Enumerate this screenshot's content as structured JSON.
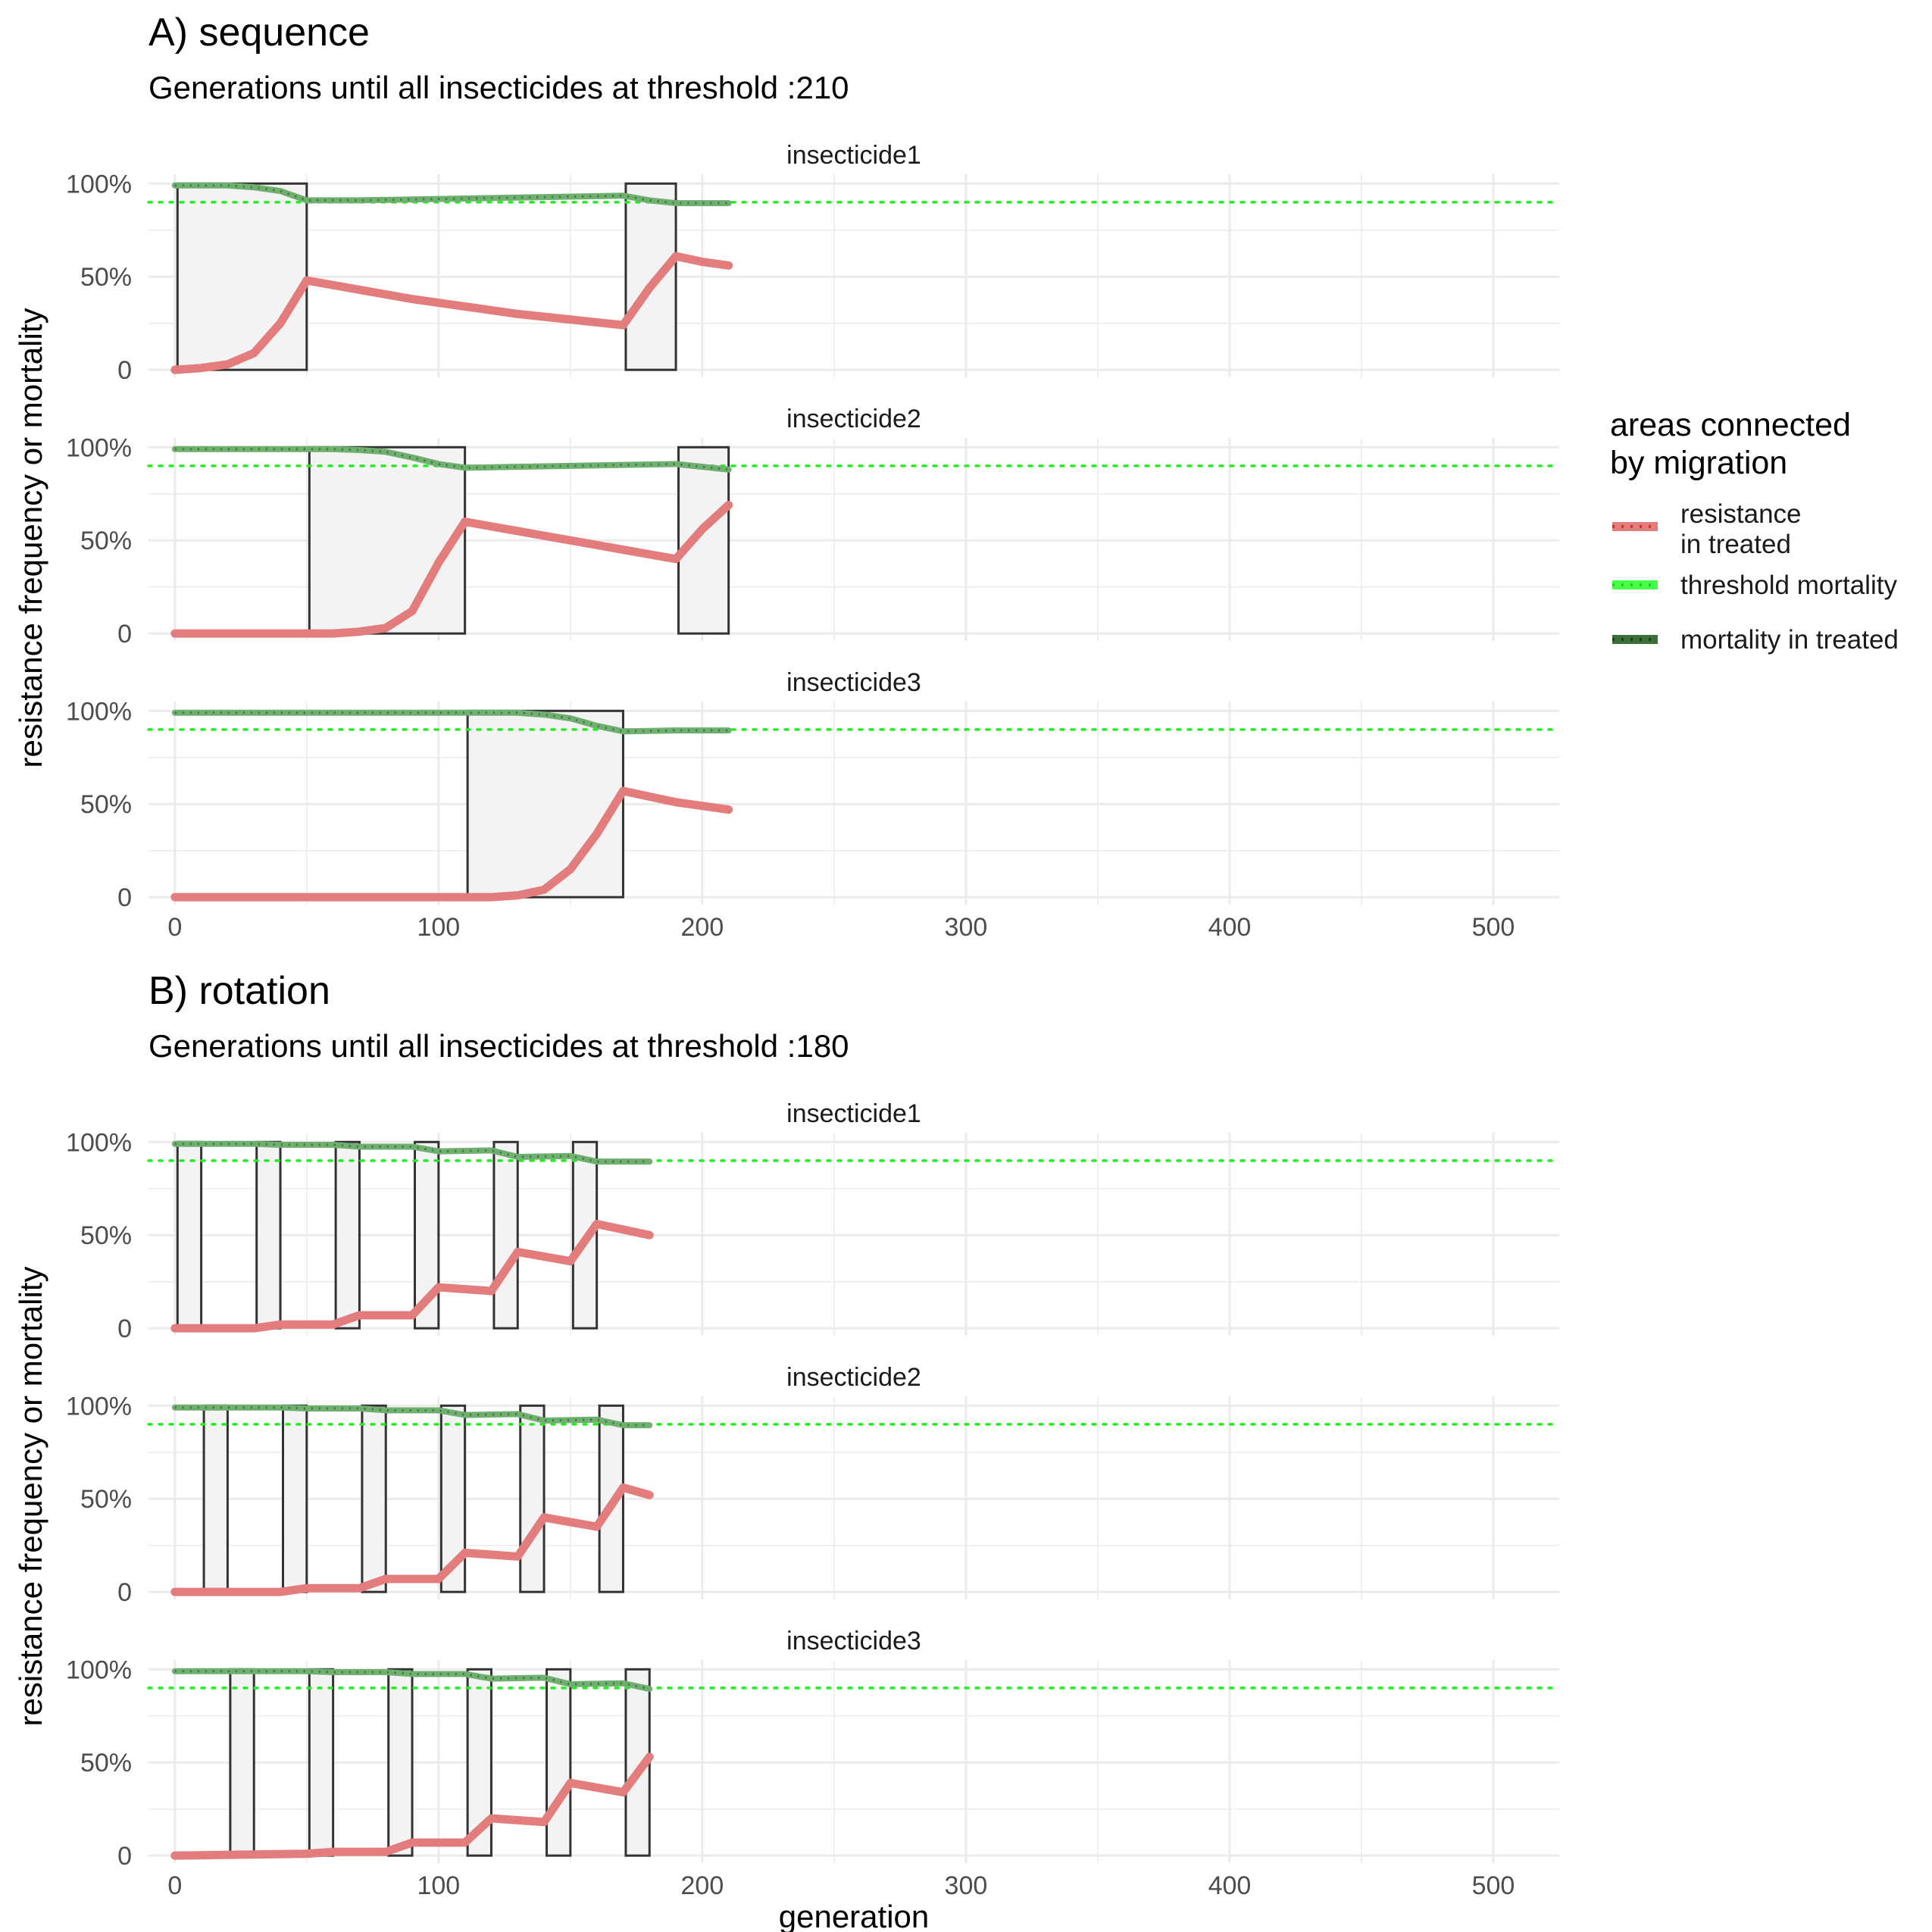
{
  "chart_data": [
    {
      "type": "line",
      "title": "A) sequence",
      "subtitle": "Generations until all insecticides at threshold :210",
      "xlabel": "",
      "ylabel": "resistance frequency or mortality",
      "xlim": [
        -10,
        525
      ],
      "xticks": [
        0,
        100,
        200,
        300,
        400,
        500
      ],
      "ylim": [
        -0.04,
        1.05
      ],
      "yticks": [
        0,
        0.5,
        1
      ],
      "yticklabels": [
        "0",
        "50%",
        "100%"
      ],
      "threshold": 0.9,
      "grid": true,
      "panels": [
        {
          "label": "insecticide1",
          "treated": [
            [
              1,
              50
            ],
            [
              171,
              190
            ]
          ],
          "resistance": {
            "x": [
              0,
              10,
              20,
              30,
              40,
              50,
              70,
              90,
              110,
              130,
              150,
              170,
              180,
              190,
              200,
              210
            ],
            "y": [
              0.0,
              0.01,
              0.03,
              0.09,
              0.25,
              0.48,
              0.43,
              0.38,
              0.34,
              0.3,
              0.27,
              0.24,
              0.44,
              0.61,
              0.58,
              0.56
            ]
          },
          "mortality": {
            "x": [
              0,
              20,
              30,
              40,
              50,
              70,
              90,
              110,
              130,
              150,
              170,
              180,
              190,
              200,
              210
            ],
            "y": [
              0.99,
              0.99,
              0.98,
              0.96,
              0.91,
              0.91,
              0.915,
              0.92,
              0.925,
              0.93,
              0.935,
              0.91,
              0.895,
              0.895,
              0.895
            ]
          }
        },
        {
          "label": "insecticide2",
          "treated": [
            [
              51,
              110
            ],
            [
              191,
              210
            ]
          ],
          "resistance": {
            "x": [
              0,
              50,
              60,
              70,
              80,
              90,
              100,
              110,
              130,
              150,
              170,
              190,
              200,
              210
            ],
            "y": [
              0.0,
              0.0,
              0.0,
              0.01,
              0.03,
              0.12,
              0.38,
              0.6,
              0.55,
              0.5,
              0.45,
              0.4,
              0.56,
              0.69
            ]
          },
          "mortality": {
            "x": [
              0,
              60,
              70,
              80,
              90,
              100,
              110,
              130,
              150,
              170,
              190,
              200,
              210
            ],
            "y": [
              0.99,
              0.99,
              0.985,
              0.975,
              0.945,
              0.91,
              0.89,
              0.895,
              0.9,
              0.905,
              0.91,
              0.895,
              0.88
            ]
          }
        },
        {
          "label": "insecticide3",
          "treated": [
            [
              111,
              170
            ]
          ],
          "resistance": {
            "x": [
              0,
              110,
              120,
              130,
              140,
              150,
              160,
              170,
              190,
              210
            ],
            "y": [
              0.0,
              0.0,
              0.0,
              0.01,
              0.04,
              0.15,
              0.34,
              0.57,
              0.51,
              0.47
            ]
          },
          "mortality": {
            "x": [
              0,
              110,
              130,
              140,
              150,
              160,
              170,
              190,
              210
            ],
            "y": [
              0.99,
              0.99,
              0.99,
              0.98,
              0.96,
              0.92,
              0.89,
              0.895,
              0.895
            ]
          }
        }
      ]
    },
    {
      "type": "line",
      "title": "B) rotation",
      "subtitle": "Generations until all insecticides at threshold :180",
      "xlabel": "generation",
      "ylabel": "resistance frequency or mortality",
      "xlim": [
        -10,
        525
      ],
      "xticks": [
        0,
        100,
        200,
        300,
        400,
        500
      ],
      "ylim": [
        -0.04,
        1.05
      ],
      "yticks": [
        0,
        0.5,
        1
      ],
      "yticklabels": [
        "0",
        "50%",
        "100%"
      ],
      "threshold": 0.9,
      "grid": true,
      "panels": [
        {
          "label": "insecticide1",
          "treated": [
            [
              1,
              10
            ],
            [
              31,
              40
            ],
            [
              61,
              70
            ],
            [
              91,
              100
            ],
            [
              121,
              130
            ],
            [
              151,
              160
            ]
          ],
          "resistance": {
            "x": [
              0,
              30,
              40,
              60,
              70,
              90,
              100,
              120,
              130,
              150,
              160,
              180
            ],
            "y": [
              0.0,
              0.0,
              0.02,
              0.02,
              0.07,
              0.07,
              0.22,
              0.2,
              0.41,
              0.36,
              0.56,
              0.5
            ]
          },
          "mortality": {
            "x": [
              0,
              30,
              40,
              60,
              70,
              90,
              100,
              120,
              130,
              150,
              160,
              180
            ],
            "y": [
              0.99,
              0.99,
              0.985,
              0.985,
              0.975,
              0.975,
              0.95,
              0.955,
              0.92,
              0.925,
              0.895,
              0.895
            ]
          }
        },
        {
          "label": "insecticide2",
          "treated": [
            [
              11,
              20
            ],
            [
              41,
              50
            ],
            [
              71,
              80
            ],
            [
              101,
              110
            ],
            [
              131,
              140
            ],
            [
              161,
              170
            ]
          ],
          "resistance": {
            "x": [
              0,
              40,
              50,
              70,
              80,
              100,
              110,
              130,
              140,
              160,
              170,
              180
            ],
            "y": [
              0.0,
              0.0,
              0.02,
              0.02,
              0.07,
              0.07,
              0.21,
              0.19,
              0.4,
              0.35,
              0.56,
              0.52
            ]
          },
          "mortality": {
            "x": [
              0,
              40,
              50,
              70,
              80,
              100,
              110,
              130,
              140,
              160,
              170,
              180
            ],
            "y": [
              0.99,
              0.99,
              0.985,
              0.985,
              0.975,
              0.975,
              0.95,
              0.955,
              0.92,
              0.925,
              0.895,
              0.895
            ]
          }
        },
        {
          "label": "insecticide3",
          "treated": [
            [
              21,
              30
            ],
            [
              51,
              60
            ],
            [
              81,
              90
            ],
            [
              111,
              120
            ],
            [
              141,
              150
            ],
            [
              171,
              180
            ]
          ],
          "resistance": {
            "x": [
              0,
              50,
              60,
              80,
              90,
              110,
              120,
              140,
              150,
              170,
              180
            ],
            "y": [
              0.0,
              0.01,
              0.02,
              0.02,
              0.07,
              0.07,
              0.2,
              0.18,
              0.39,
              0.34,
              0.53
            ]
          },
          "mortality": {
            "x": [
              0,
              50,
              60,
              80,
              90,
              110,
              120,
              140,
              150,
              170,
              180
            ],
            "y": [
              0.99,
              0.99,
              0.985,
              0.985,
              0.975,
              0.975,
              0.95,
              0.955,
              0.92,
              0.925,
              0.895
            ]
          }
        }
      ]
    }
  ],
  "legend": {
    "title_line1": "areas connected",
    "title_line2": "by migration",
    "items": [
      {
        "label_line1": "resistance",
        "label_line2": "in treated",
        "color": "#E37C7C",
        "dot_color": "#C0392B"
      },
      {
        "label_line1": "threshold mortality",
        "label_line2": "",
        "color": "#44FF44",
        "dot_color": "#22CC22"
      },
      {
        "label_line1": "mortality in treated",
        "label_line2": "",
        "color": "#3A6F3A",
        "dot_color": "#1E3F1E"
      }
    ]
  },
  "colors": {
    "resistance": "#E37C7C",
    "mortality": "#6FAF6F",
    "mortality_dots": "#2F5F2F",
    "threshold": "#22EE22",
    "treated_fill": "#F3F3F3",
    "treated_stroke": "#333333",
    "grid": "#EBEBEB",
    "text": "#000000",
    "tick_text": "#4D4D4D"
  }
}
